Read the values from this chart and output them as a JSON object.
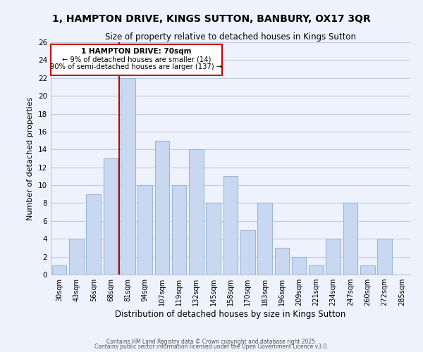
{
  "title": "1, HAMPTON DRIVE, KINGS SUTTON, BANBURY, OX17 3QR",
  "subtitle": "Size of property relative to detached houses in Kings Sutton",
  "xlabel": "Distribution of detached houses by size in Kings Sutton",
  "ylabel": "Number of detached properties",
  "bins": [
    "30sqm",
    "43sqm",
    "56sqm",
    "68sqm",
    "81sqm",
    "94sqm",
    "107sqm",
    "119sqm",
    "132sqm",
    "145sqm",
    "158sqm",
    "170sqm",
    "183sqm",
    "196sqm",
    "209sqm",
    "221sqm",
    "234sqm",
    "247sqm",
    "260sqm",
    "272sqm",
    "285sqm"
  ],
  "bin_edges": [
    30,
    43,
    56,
    68,
    81,
    94,
    107,
    119,
    132,
    145,
    158,
    170,
    183,
    196,
    209,
    221,
    234,
    247,
    260,
    272,
    285
  ],
  "counts": [
    1,
    4,
    9,
    13,
    22,
    10,
    15,
    10,
    14,
    8,
    11,
    5,
    8,
    3,
    2,
    1,
    4,
    8,
    1,
    4,
    0
  ],
  "bar_color": "#c8d8f0",
  "bar_edge_color": "#9ab8d8",
  "grid_color": "#c0cce0",
  "background_color": "#eef2fc",
  "annotation_box_color": "#ffffff",
  "annotation_border_color": "#cc0000",
  "vline_color": "#cc0000",
  "vline_x_bin": 3,
  "annotation_title": "1 HAMPTON DRIVE: 70sqm",
  "annotation_line1": "← 9% of detached houses are smaller (14)",
  "annotation_line2": "90% of semi-detached houses are larger (137) →",
  "ylim": [
    0,
    26
  ],
  "yticks": [
    0,
    2,
    4,
    6,
    8,
    10,
    12,
    14,
    16,
    18,
    20,
    22,
    24,
    26
  ],
  "footer1": "Contains HM Land Registry data © Crown copyright and database right 2025.",
  "footer2": "Contains public sector information licensed under the Open Government Licence v3.0."
}
